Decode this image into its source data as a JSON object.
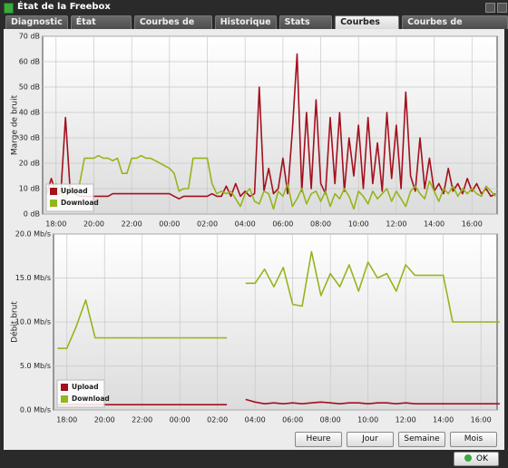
{
  "window": {
    "title": "État de la Freebox",
    "tabs": [
      "Diagnostic",
      "État Internet",
      "Courbes de Débit",
      "Historique",
      "Stats xDSL",
      "Courbes xDSL",
      "Courbes de température"
    ],
    "active_tab": 5,
    "buttons": [
      "Heure",
      "Jour",
      "Semaine",
      "Mois"
    ],
    "ok": "OK"
  },
  "chart_data": [
    {
      "type": "line",
      "ylabel": "Marge de bruit",
      "grid": true,
      "legend": "lower left",
      "xlim": [
        17.29,
        41.33
      ],
      "ylim": [
        0,
        70
      ],
      "xticks": [
        {
          "value": 18,
          "label": "18:00"
        },
        {
          "value": 20,
          "label": "20:00"
        },
        {
          "value": 22,
          "label": "22:00"
        },
        {
          "value": 24,
          "label": "00:00"
        },
        {
          "value": 26,
          "label": "02:00"
        },
        {
          "value": 28,
          "label": "04:00"
        },
        {
          "value": 30,
          "label": "06:00"
        },
        {
          "value": 32,
          "label": "08:00"
        },
        {
          "value": 34,
          "label": "10:00"
        },
        {
          "value": 36,
          "label": "12:00"
        },
        {
          "value": 38,
          "label": "14:00"
        },
        {
          "value": 40,
          "label": "16:00"
        }
      ],
      "yticks": [
        {
          "value": 0,
          "label": "0 dB"
        },
        {
          "value": 10,
          "label": "10 dB"
        },
        {
          "value": 20,
          "label": "20 dB"
        },
        {
          "value": 30,
          "label": "30 dB"
        },
        {
          "value": 40,
          "label": "40 dB"
        },
        {
          "value": 50,
          "label": "50 dB"
        },
        {
          "value": 60,
          "label": "60 dB"
        },
        {
          "value": 70,
          "label": "70 dB"
        }
      ],
      "x": [
        17.5,
        17.75,
        18,
        18.25,
        18.5,
        18.75,
        19,
        19.25,
        19.5,
        19.75,
        20,
        20.25,
        20.5,
        20.75,
        21,
        21.25,
        21.5,
        21.75,
        22,
        22.25,
        22.5,
        22.75,
        23,
        23.25,
        23.5,
        23.75,
        24,
        24.25,
        24.5,
        24.75,
        25,
        25.25,
        25.5,
        25.75,
        26,
        26.25,
        26.5,
        26.75,
        27,
        27.25,
        27.5,
        27.75,
        28,
        28.25,
        28.5,
        28.75,
        29,
        29.25,
        29.5,
        29.75,
        30,
        30.25,
        30.5,
        30.75,
        31,
        31.25,
        31.5,
        31.75,
        32,
        32.25,
        32.5,
        32.75,
        33,
        33.25,
        33.5,
        33.75,
        34,
        34.25,
        34.5,
        34.75,
        35,
        35.25,
        35.5,
        35.75,
        36,
        36.25,
        36.5,
        36.75,
        37,
        37.25,
        37.5,
        37.75,
        38,
        38.25,
        38.5,
        38.75,
        39,
        39.25,
        39.5,
        39.75,
        40,
        40.25,
        40.5,
        40.75,
        41,
        41.25
      ],
      "series": [
        {
          "name": "Upload",
          "color": "#a3101e",
          "values": [
            8,
            14,
            8,
            8,
            38,
            9,
            8,
            7,
            7,
            7,
            7,
            7,
            7,
            7,
            8,
            8,
            8,
            8,
            8,
            8,
            8,
            8,
            8,
            8,
            8,
            8,
            8,
            7,
            6,
            7,
            7,
            7,
            7,
            7,
            7,
            8,
            7,
            7,
            11,
            7,
            12,
            7,
            9,
            7,
            8,
            50,
            9,
            18,
            8,
            10,
            22,
            8,
            33,
            63,
            9,
            40,
            10,
            45,
            12,
            8,
            38,
            12,
            40,
            9,
            30,
            15,
            35,
            10,
            38,
            12,
            28,
            9,
            40,
            14,
            35,
            10,
            48,
            15,
            9,
            30,
            10,
            22,
            9,
            12,
            8,
            18,
            9,
            12,
            8,
            14,
            9,
            12,
            8,
            10,
            7,
            8
          ]
        },
        {
          "name": "Download",
          "color": "#94b51c",
          "values": [
            10,
            9,
            12,
            8,
            6,
            10,
            9,
            12,
            22,
            22,
            22,
            23,
            22,
            22,
            21,
            22,
            16,
            16,
            22,
            22,
            23,
            22,
            22,
            21,
            20,
            19,
            18,
            16,
            9,
            10,
            10,
            22,
            22,
            22,
            22,
            12,
            8,
            9,
            8,
            9,
            6,
            3,
            8,
            10,
            5,
            4,
            9,
            8,
            2,
            9,
            7,
            12,
            3,
            6,
            10,
            4,
            8,
            9,
            5,
            9,
            3,
            8,
            6,
            10,
            7,
            2,
            9,
            7,
            4,
            9,
            6,
            8,
            10,
            5,
            9,
            6,
            3,
            9,
            11,
            8,
            6,
            13,
            9,
            5,
            10,
            8,
            11,
            7,
            10,
            8,
            10,
            8,
            7,
            11,
            9,
            7
          ]
        }
      ]
    },
    {
      "type": "line",
      "ylabel": "Débit brut",
      "grid": true,
      "legend": "lower left",
      "xlim": [
        17.29,
        40.86
      ],
      "ylim": [
        0,
        20
      ],
      "xticks": [
        {
          "value": 18,
          "label": "18:00"
        },
        {
          "value": 20,
          "label": "20:00"
        },
        {
          "value": 22,
          "label": "22:00"
        },
        {
          "value": 24,
          "label": "00:00"
        },
        {
          "value": 26,
          "label": "02:00"
        },
        {
          "value": 28,
          "label": "04:00"
        },
        {
          "value": 30,
          "label": "06:00"
        },
        {
          "value": 32,
          "label": "08:00"
        },
        {
          "value": 34,
          "label": "10:00"
        },
        {
          "value": 36,
          "label": "12:00"
        },
        {
          "value": 38,
          "label": "14:00"
        },
        {
          "value": 40,
          "label": "16:00"
        }
      ],
      "yticks": [
        {
          "value": 0,
          "label": "0.0 Mb/s"
        },
        {
          "value": 5,
          "label": "5.0 Mb/s"
        },
        {
          "value": 10,
          "label": "10.0 Mb/s"
        },
        {
          "value": 15,
          "label": "15.0 Mb/s"
        },
        {
          "value": 20,
          "label": "20.0 Mb/s"
        }
      ],
      "x": [
        17.5,
        18,
        18.5,
        19,
        19.5,
        20,
        20.5,
        21,
        21.5,
        22,
        22.5,
        23,
        23.5,
        24,
        24.5,
        25,
        25.5,
        26,
        26.5,
        27,
        27.5,
        28,
        28.5,
        29,
        29.5,
        30,
        30.5,
        31,
        31.5,
        32,
        32.5,
        33,
        33.5,
        34,
        34.5,
        35,
        35.5,
        36,
        36.5,
        37,
        37.5,
        38,
        38.5,
        39,
        39.5,
        40,
        40.5,
        41
      ],
      "series": [
        {
          "name": "Upload",
          "color": "#a3101e",
          "values": [
            0.6,
            0.6,
            0.6,
            0.6,
            0.6,
            0.6,
            0.6,
            0.6,
            0.6,
            0.6,
            0.6,
            0.6,
            0.6,
            0.6,
            0.6,
            0.6,
            0.6,
            0.6,
            0.6,
            null,
            1.2,
            0.9,
            0.7,
            0.8,
            0.7,
            0.8,
            0.7,
            0.8,
            0.9,
            0.8,
            0.7,
            0.8,
            0.8,
            0.7,
            0.8,
            0.8,
            0.7,
            0.8,
            0.7,
            0.7,
            0.7,
            0.7,
            0.7,
            0.7,
            0.7,
            0.7,
            0.7,
            0.7
          ]
        },
        {
          "name": "Download",
          "color": "#94b51c",
          "values": [
            7.0,
            7.0,
            9.5,
            12.5,
            8.2,
            8.2,
            8.2,
            8.2,
            8.2,
            8.2,
            8.2,
            8.2,
            8.2,
            8.2,
            8.2,
            8.2,
            8.2,
            8.2,
            8.2,
            null,
            14.4,
            14.4,
            16.0,
            14.0,
            16.2,
            12.0,
            11.8,
            18.0,
            13.0,
            15.5,
            14.0,
            16.5,
            13.5,
            16.8,
            15.0,
            15.5,
            13.5,
            16.5,
            15.3,
            15.3,
            15.3,
            15.3,
            10.0,
            10.0,
            10.0,
            10.0,
            10.0,
            10.0
          ]
        }
      ]
    }
  ]
}
